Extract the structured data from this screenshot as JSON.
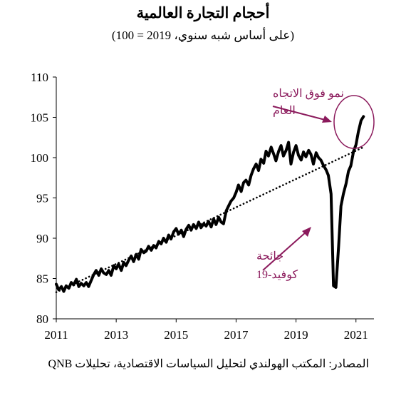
{
  "colors": {
    "line": "#000000",
    "trend": "#000000",
    "annotation": "#8b1a5c",
    "axis": "#000000"
  },
  "chart_data": {
    "type": "line",
    "title": "أحجام التجارة العالمية",
    "subtitle": "(على أساس شبه سنوي، 2019 = 100)",
    "source": "المصادر: المكتب الهولندي لتحليل السياسات الاقتصادية، تحليلات QNB",
    "xlim": [
      2011,
      2021.6
    ],
    "ylim": [
      80,
      110
    ],
    "x_ticks": [
      2011,
      2013,
      2015,
      2017,
      2019,
      2021
    ],
    "y_ticks": [
      80,
      85,
      90,
      95,
      100,
      105,
      110
    ],
    "grid": false,
    "series": [
      {
        "style": "solid",
        "x": [
          2011.0,
          2011.08,
          2011.17,
          2011.25,
          2011.33,
          2011.42,
          2011.5,
          2011.58,
          2011.67,
          2011.75,
          2011.83,
          2011.92,
          2012.0,
          2012.08,
          2012.17,
          2012.25,
          2012.33,
          2012.42,
          2012.5,
          2012.58,
          2012.67,
          2012.75,
          2012.83,
          2012.92,
          2013.0,
          2013.08,
          2013.17,
          2013.25,
          2013.33,
          2013.42,
          2013.5,
          2013.58,
          2013.67,
          2013.75,
          2013.83,
          2013.92,
          2014.0,
          2014.08,
          2014.17,
          2014.25,
          2014.33,
          2014.42,
          2014.5,
          2014.58,
          2014.67,
          2014.75,
          2014.83,
          2014.92,
          2015.0,
          2015.08,
          2015.17,
          2015.25,
          2015.33,
          2015.42,
          2015.5,
          2015.58,
          2015.67,
          2015.75,
          2015.83,
          2015.92,
          2016.0,
          2016.08,
          2016.17,
          2016.25,
          2016.33,
          2016.42,
          2016.5,
          2016.58,
          2016.67,
          2016.75,
          2016.83,
          2016.92,
          2017.0,
          2017.08,
          2017.17,
          2017.25,
          2017.33,
          2017.42,
          2017.5,
          2017.58,
          2017.67,
          2017.75,
          2017.83,
          2017.92,
          2018.0,
          2018.08,
          2018.17,
          2018.25,
          2018.33,
          2018.42,
          2018.5,
          2018.58,
          2018.67,
          2018.75,
          2018.83,
          2018.92,
          2019.0,
          2019.08,
          2019.17,
          2019.25,
          2019.33,
          2019.42,
          2019.5,
          2019.58,
          2019.67,
          2019.75,
          2019.83,
          2019.92,
          2020.0,
          2020.08,
          2020.17,
          2020.25,
          2020.33,
          2020.42,
          2020.5,
          2020.58,
          2020.67,
          2020.75,
          2020.83,
          2020.92,
          2021.0,
          2021.08,
          2021.17,
          2021.25
        ],
        "y": [
          84.3,
          83.6,
          84.0,
          83.4,
          84.1,
          83.8,
          84.5,
          84.2,
          84.9,
          84.0,
          84.4,
          84.1,
          84.5,
          84.0,
          84.8,
          85.5,
          86.0,
          85.4,
          86.2,
          85.7,
          85.5,
          86.0,
          85.4,
          86.6,
          86.2,
          86.8,
          86.0,
          87.0,
          86.6,
          87.3,
          87.8,
          87.1,
          88.0,
          87.4,
          88.6,
          88.2,
          88.4,
          89.0,
          88.5,
          89.1,
          88.8,
          89.6,
          89.3,
          90.0,
          89.5,
          90.4,
          89.9,
          90.8,
          91.2,
          90.5,
          91.0,
          90.2,
          91.1,
          91.6,
          91.0,
          91.7,
          91.2,
          92.0,
          91.3,
          91.8,
          91.5,
          92.1,
          91.4,
          92.4,
          91.7,
          92.6,
          92.0,
          91.8,
          93.4,
          94.0,
          94.6,
          95.0,
          95.7,
          96.6,
          95.8,
          96.9,
          97.2,
          96.6,
          97.8,
          98.6,
          99.2,
          98.4,
          99.8,
          99.3,
          100.8,
          100.2,
          101.3,
          100.5,
          99.6,
          100.8,
          101.5,
          100.2,
          100.9,
          101.9,
          99.2,
          100.7,
          101.5,
          100.3,
          99.7,
          100.7,
          100.1,
          100.9,
          100.4,
          99.2,
          100.6,
          100.0,
          99.7,
          99.0,
          98.5,
          97.8,
          95.5,
          84.1,
          83.9,
          89.0,
          94.0,
          95.5,
          96.8,
          98.3,
          99.0,
          100.8,
          101.6,
          103.2,
          104.6,
          105.1
        ]
      },
      {
        "style": "dotted",
        "x": [
          2011.0,
          2021.25
        ],
        "y": [
          83.3,
          101.3
        ]
      }
    ],
    "annotations": [
      {
        "text_lines": [
          "نمو فوق الاتجاه",
          "العام"
        ]
      },
      {
        "text_lines": [
          "جائحة",
          "كوفيد-19"
        ]
      }
    ]
  }
}
